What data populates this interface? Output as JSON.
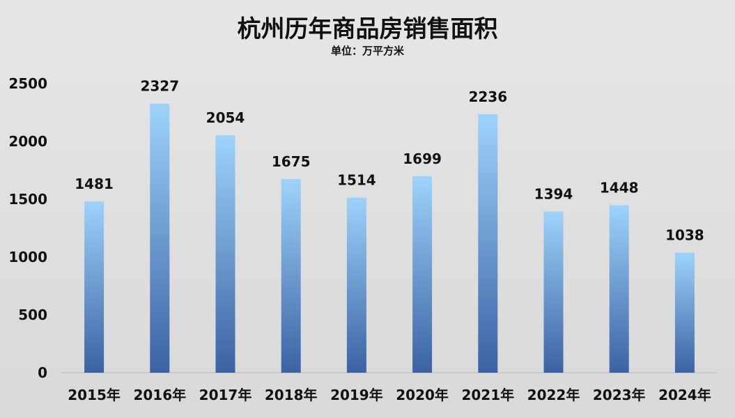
{
  "chart_data": {
    "type": "bar",
    "title": "杭州历年商品房销售面积",
    "subtitle": "单位：万平方米",
    "categories": [
      "2015年",
      "2016年",
      "2017年",
      "2018年",
      "2019年",
      "2020年",
      "2021年",
      "2022年",
      "2023年",
      "2024年"
    ],
    "series": [
      {
        "values": [
          1481,
          2327,
          2054,
          1675,
          1514,
          1699,
          2236,
          1394,
          1448,
          1038
        ]
      }
    ],
    "ylim": [
      0,
      2500
    ],
    "yticks": [
      0,
      500,
      1000,
      1500,
      2000,
      2500
    ],
    "grid": false,
    "legend": "none",
    "data_labels": true,
    "colors": {
      "bar_top": "#9dd3fb",
      "bar_bottom": "#3b62a3",
      "background": "#dcdcdc"
    }
  }
}
